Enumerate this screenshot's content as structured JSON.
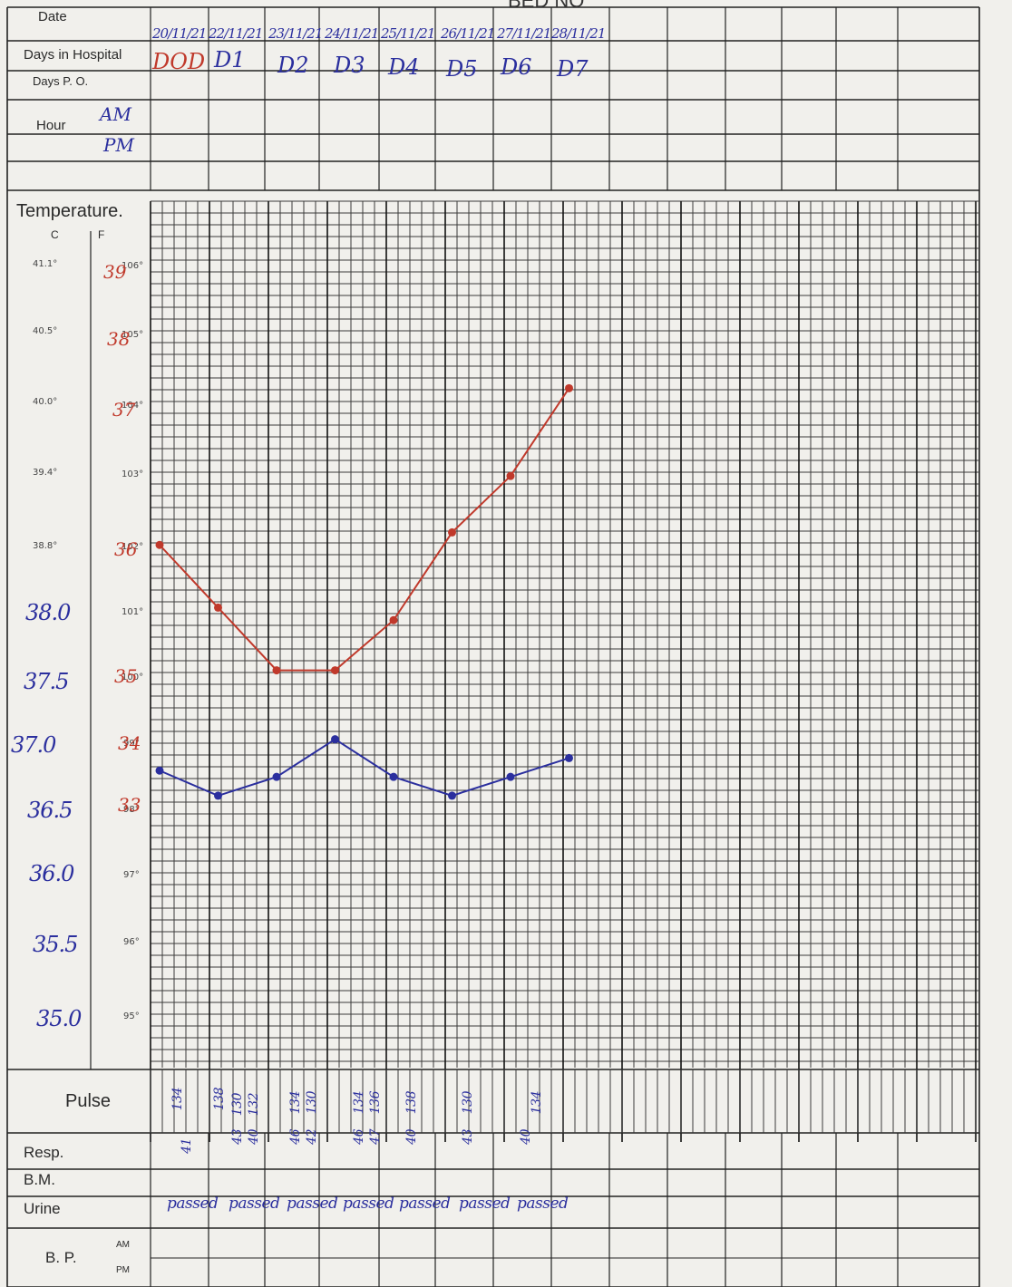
{
  "header": {
    "bed_no_partial": "BED NO"
  },
  "rows": {
    "date_label": "Date",
    "days_in_hospital_label": "Days in Hospital",
    "days_po_label": "Days P. O.",
    "hour_label": "Hour",
    "hour_am": "AM",
    "hour_pm": "PM",
    "pulse_label": "Pulse",
    "resp_label": "Resp.",
    "bm_label": "B.M.",
    "urine_label": "Urine",
    "bp_label": "B. P.",
    "bp_am": "AM",
    "bp_pm": "PM"
  },
  "columns": [
    {
      "date": "20/11/21",
      "day": "DOD",
      "pulse": [
        "134"
      ],
      "resp": [
        "41"
      ],
      "urine": "passed"
    },
    {
      "date": "22/11/21",
      "day": "D1",
      "pulse": [
        "138"
      ],
      "resp": [],
      "urine": "passed"
    },
    {
      "date": "23/11/21",
      "day": "D2",
      "pulse": [
        "130",
        "132"
      ],
      "resp": [
        "43",
        "40"
      ],
      "urine": "passed"
    },
    {
      "date": "24/11/21",
      "day": "D3",
      "pulse": [
        "134",
        "130"
      ],
      "resp": [
        "46",
        "42"
      ],
      "urine": "passed"
    },
    {
      "date": "25/11/21",
      "day": "D4",
      "pulse": [
        "134",
        "136"
      ],
      "resp": [
        "46",
        "47"
      ],
      "urine": "passed"
    },
    {
      "date": "26/11/21",
      "day": "D5",
      "pulse": [
        "138"
      ],
      "resp": [
        "40"
      ],
      "urine": "passed"
    },
    {
      "date": "27/11/21",
      "day": "D6",
      "pulse": [
        "130"
      ],
      "resp": [
        "43"
      ],
      "urine": "passed"
    },
    {
      "date": "28/11/21",
      "day": "D7",
      "pulse": [
        "134"
      ],
      "resp": [
        "40"
      ],
      "urine": ""
    }
  ],
  "temperature": {
    "label": "Temperature.",
    "c_label": "C",
    "f_label": "F",
    "celsius_printed": [
      "41.1°",
      "40.5°",
      "40.0°",
      "39.4°",
      "38.8°"
    ],
    "fahrenheit_printed": [
      "106°",
      "105°",
      "104°",
      "103°",
      "102°",
      "101°",
      "100°",
      "99°",
      "98°",
      "97°",
      "96°",
      "95°"
    ],
    "celsius_hand": [
      "38.0",
      "37.5",
      "37.0",
      "36.5",
      "36.0",
      "35.5",
      "35.0"
    ],
    "red_scale_hand": [
      "39",
      "38",
      "37",
      "36",
      "35",
      "34",
      "33"
    ]
  },
  "chart_data": {
    "type": "line",
    "title": "",
    "xlabel": "",
    "ylabel": "",
    "ylim": [
      94.5,
      106.5
    ],
    "categories": [
      "DOD",
      "D1",
      "D2",
      "D3",
      "D4",
      "D5",
      "D6",
      "D7"
    ],
    "series": [
      {
        "name": "",
        "color": "#c0392b",
        "values": [
          102.0,
          101.0,
          100.0,
          100.0,
          100.8,
          102.2,
          103.1,
          104.5
        ]
      },
      {
        "name": "",
        "color": "#2b2f9e",
        "values": [
          98.4,
          98.0,
          98.3,
          98.9,
          98.3,
          98.0,
          98.3,
          98.6
        ]
      }
    ]
  }
}
